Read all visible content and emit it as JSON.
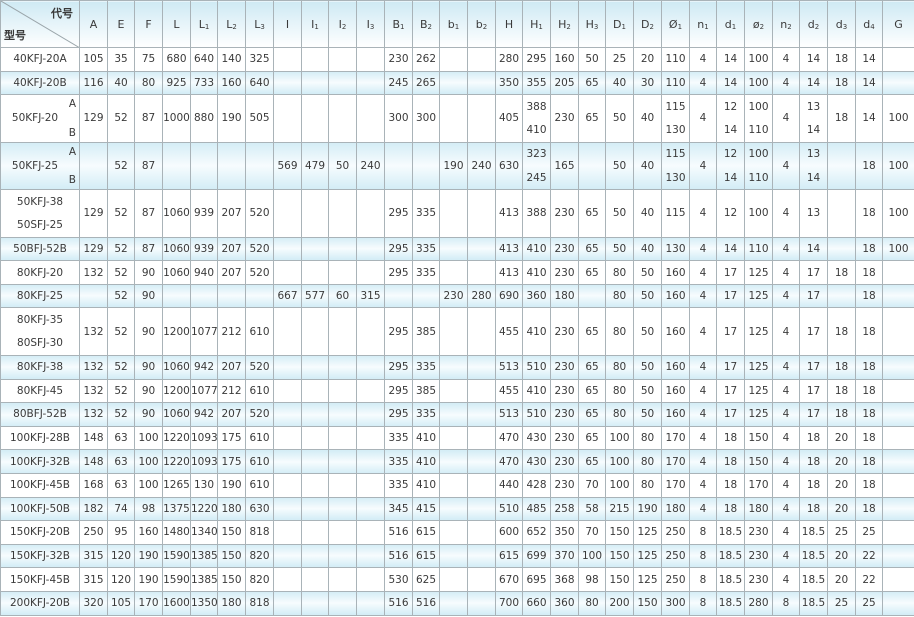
{
  "header": {
    "corner_top": "代号",
    "corner_bottom": "型号",
    "columns": [
      {
        "base": "A",
        "sub": ""
      },
      {
        "base": "E",
        "sub": ""
      },
      {
        "base": "F",
        "sub": ""
      },
      {
        "base": "L",
        "sub": ""
      },
      {
        "base": "L",
        "sub": "1"
      },
      {
        "base": "L",
        "sub": "2"
      },
      {
        "base": "L",
        "sub": "3"
      },
      {
        "base": "I",
        "sub": ""
      },
      {
        "base": "I",
        "sub": "1"
      },
      {
        "base": "I",
        "sub": "2"
      },
      {
        "base": "I",
        "sub": "3"
      },
      {
        "base": "B",
        "sub": "1"
      },
      {
        "base": "B",
        "sub": "2"
      },
      {
        "base": "b",
        "sub": "1"
      },
      {
        "base": "b",
        "sub": "2"
      },
      {
        "base": "H",
        "sub": ""
      },
      {
        "base": "H",
        "sub": "1"
      },
      {
        "base": "H",
        "sub": "2"
      },
      {
        "base": "H",
        "sub": "3"
      },
      {
        "base": "D",
        "sub": "1"
      },
      {
        "base": "D",
        "sub": "2"
      },
      {
        "base": "Ø",
        "sub": "1"
      },
      {
        "base": "n",
        "sub": "1"
      },
      {
        "base": "d",
        "sub": "1"
      },
      {
        "base": "ø",
        "sub": "2"
      },
      {
        "base": "n",
        "sub": "2"
      },
      {
        "base": "d",
        "sub": "2"
      },
      {
        "base": "d",
        "sub": "3"
      },
      {
        "base": "d",
        "sub": "4"
      },
      {
        "base": "G",
        "sub": ""
      }
    ]
  },
  "colors": {
    "shade": "#d4edf6",
    "border": "#a9b3b8",
    "text": "#3a3a3a"
  },
  "rows": [
    {
      "model": [
        "40KFJ-20A"
      ],
      "cells": [
        "105",
        "35",
        "75",
        "680",
        "640",
        "140",
        "325",
        "",
        "",
        "",
        "",
        "230",
        "262",
        "",
        "",
        "280",
        "295",
        "160",
        "50",
        "25",
        "20",
        "110",
        "4",
        "14",
        "100",
        "4",
        "14",
        "18",
        "14",
        ""
      ]
    },
    {
      "model": [
        "40KFJ-20B"
      ],
      "cells": [
        "116",
        "40",
        "80",
        "925",
        "733",
        "160",
        "640",
        "",
        "",
        "",
        "",
        "245",
        "265",
        "",
        "",
        "350",
        "355",
        "205",
        "65",
        "40",
        "30",
        "110",
        "4",
        "14",
        "100",
        "4",
        "14",
        "18",
        "14",
        ""
      ]
    },
    {
      "model": [
        "50KFJ-20"
      ],
      "variants": [
        "A",
        "B"
      ],
      "cells": [
        "129",
        "52",
        "87",
        "1000",
        "880",
        "190",
        "505",
        "",
        "",
        "",
        "",
        "300",
        "300",
        "",
        "",
        "405",
        [
          "388",
          "410"
        ],
        "230",
        "65",
        "50",
        "40",
        [
          "115",
          "130"
        ],
        "4",
        [
          "12",
          "14"
        ],
        [
          "100",
          "110"
        ],
        "4",
        [
          "13",
          "14"
        ],
        "18",
        "14",
        "100"
      ]
    },
    {
      "model": [
        "50KFJ-25"
      ],
      "variants": [
        "A",
        "B"
      ],
      "cells": [
        "",
        "52",
        "87",
        "",
        "",
        "",
        "",
        "569",
        "479",
        "50",
        "240",
        "",
        "",
        "190",
        "240",
        "630",
        [
          "323",
          "245"
        ],
        "165",
        "",
        "50",
        "40",
        [
          "115",
          "130"
        ],
        "4",
        [
          "12",
          "14"
        ],
        [
          "100",
          "110"
        ],
        "4",
        [
          "13",
          "14"
        ],
        "",
        "18",
        "100"
      ]
    },
    {
      "model": [
        "50KFJ-38",
        "50SFJ-25"
      ],
      "cells": [
        "129",
        "52",
        "87",
        "1060",
        "939",
        "207",
        "520",
        "",
        "",
        "",
        "",
        "295",
        "335",
        "",
        "",
        "413",
        "388",
        "230",
        "65",
        "50",
        "40",
        "115",
        "4",
        "12",
        "100",
        "4",
        "13",
        "",
        "18",
        "100"
      ]
    },
    {
      "model": [
        "50BFJ-52B"
      ],
      "cells": [
        "129",
        "52",
        "87",
        "1060",
        "939",
        "207",
        "520",
        "",
        "",
        "",
        "",
        "295",
        "335",
        "",
        "",
        "413",
        "410",
        "230",
        "65",
        "50",
        "40",
        "130",
        "4",
        "14",
        "110",
        "4",
        "14",
        "",
        "18",
        "100"
      ]
    },
    {
      "model": [
        "80KFJ-20"
      ],
      "cells": [
        "132",
        "52",
        "90",
        "1060",
        "940",
        "207",
        "520",
        "",
        "",
        "",
        "",
        "295",
        "335",
        "",
        "",
        "413",
        "410",
        "230",
        "65",
        "80",
        "50",
        "160",
        "4",
        "17",
        "125",
        "4",
        "17",
        "18",
        "18",
        ""
      ]
    },
    {
      "model": [
        "80KFJ-25"
      ],
      "cells": [
        "",
        "52",
        "90",
        "",
        "",
        "",
        "",
        "667",
        "577",
        "60",
        "315",
        "",
        "",
        "230",
        "280",
        "690",
        "360",
        "180",
        "",
        "80",
        "50",
        "160",
        "4",
        "17",
        "125",
        "4",
        "17",
        "",
        "18",
        ""
      ]
    },
    {
      "model": [
        "80KFJ-35",
        "80SFJ-30"
      ],
      "cells": [
        "132",
        "52",
        "90",
        "1200",
        "1077",
        "212",
        "610",
        "",
        "",
        "",
        "",
        "295",
        "385",
        "",
        "",
        "455",
        "410",
        "230",
        "65",
        "80",
        "50",
        "160",
        "4",
        "17",
        "125",
        "4",
        "17",
        "18",
        "18",
        ""
      ]
    },
    {
      "model": [
        "80KFJ-38"
      ],
      "cells": [
        "132",
        "52",
        "90",
        "1060",
        "942",
        "207",
        "520",
        "",
        "",
        "",
        "",
        "295",
        "335",
        "",
        "",
        "513",
        "510",
        "230",
        "65",
        "80",
        "50",
        "160",
        "4",
        "17",
        "125",
        "4",
        "17",
        "18",
        "18",
        ""
      ]
    },
    {
      "model": [
        "80KFJ-45"
      ],
      "cells": [
        "132",
        "52",
        "90",
        "1200",
        "1077",
        "212",
        "610",
        "",
        "",
        "",
        "",
        "295",
        "385",
        "",
        "",
        "455",
        "410",
        "230",
        "65",
        "80",
        "50",
        "160",
        "4",
        "17",
        "125",
        "4",
        "17",
        "18",
        "18",
        ""
      ]
    },
    {
      "model": [
        "80BFJ-52B"
      ],
      "cells": [
        "132",
        "52",
        "90",
        "1060",
        "942",
        "207",
        "520",
        "",
        "",
        "",
        "",
        "295",
        "335",
        "",
        "",
        "513",
        "510",
        "230",
        "65",
        "80",
        "50",
        "160",
        "4",
        "17",
        "125",
        "4",
        "17",
        "18",
        "18",
        ""
      ]
    },
    {
      "model": [
        "100KFJ-28B"
      ],
      "cells": [
        "148",
        "63",
        "100",
        "1220",
        "1093",
        "175",
        "610",
        "",
        "",
        "",
        "",
        "335",
        "410",
        "",
        "",
        "470",
        "430",
        "230",
        "65",
        "100",
        "80",
        "170",
        "4",
        "18",
        "150",
        "4",
        "18",
        "20",
        "18",
        ""
      ]
    },
    {
      "model": [
        "100KFJ-32B"
      ],
      "cells": [
        "148",
        "63",
        "100",
        "1220",
        "1093",
        "175",
        "610",
        "",
        "",
        "",
        "",
        "335",
        "410",
        "",
        "",
        "470",
        "430",
        "230",
        "65",
        "100",
        "80",
        "170",
        "4",
        "18",
        "150",
        "4",
        "18",
        "20",
        "18",
        ""
      ]
    },
    {
      "model": [
        "100KFJ-45B"
      ],
      "cells": [
        "168",
        "63",
        "100",
        "1265",
        "130",
        "190",
        "610",
        "",
        "",
        "",
        "",
        "335",
        "410",
        "",
        "",
        "440",
        "428",
        "230",
        "70",
        "100",
        "80",
        "170",
        "4",
        "18",
        "170",
        "4",
        "18",
        "20",
        "18",
        ""
      ]
    },
    {
      "model": [
        "100KFJ-50B"
      ],
      "cells": [
        "182",
        "74",
        "98",
        "1375",
        "1220",
        "180",
        "630",
        "",
        "",
        "",
        "",
        "345",
        "415",
        "",
        "",
        "510",
        "485",
        "258",
        "58",
        "215",
        "190",
        "180",
        "4",
        "18",
        "180",
        "4",
        "18",
        "20",
        "18",
        ""
      ]
    },
    {
      "model": [
        "150KFJ-20B"
      ],
      "cells": [
        "250",
        "95",
        "160",
        "1480",
        "1340",
        "150",
        "818",
        "",
        "",
        "",
        "",
        "516",
        "615",
        "",
        "",
        "600",
        "652",
        "350",
        "70",
        "150",
        "125",
        "250",
        "8",
        "18.5",
        "230",
        "4",
        "18.5",
        "25",
        "25",
        ""
      ]
    },
    {
      "model": [
        "150KFJ-32B"
      ],
      "cells": [
        "315",
        "120",
        "190",
        "1590",
        "1385",
        "150",
        "820",
        "",
        "",
        "",
        "",
        "516",
        "615",
        "",
        "",
        "615",
        "699",
        "370",
        "100",
        "150",
        "125",
        "250",
        "8",
        "18.5",
        "230",
        "4",
        "18.5",
        "20",
        "22",
        ""
      ]
    },
    {
      "model": [
        "150KFJ-45B"
      ],
      "cells": [
        "315",
        "120",
        "190",
        "1590",
        "1385",
        "150",
        "820",
        "",
        "",
        "",
        "",
        "530",
        "625",
        "",
        "",
        "670",
        "695",
        "368",
        "98",
        "150",
        "125",
        "250",
        "8",
        "18.5",
        "230",
        "4",
        "18.5",
        "20",
        "22",
        ""
      ]
    },
    {
      "model": [
        "200KFJ-20B"
      ],
      "cells": [
        "320",
        "105",
        "170",
        "1600",
        "1350",
        "180",
        "818",
        "",
        "",
        "",
        "",
        "516",
        "516",
        "",
        "",
        "700",
        "660",
        "360",
        "80",
        "200",
        "150",
        "300",
        "8",
        "18.5",
        "280",
        "8",
        "18.5",
        "25",
        "25",
        ""
      ]
    }
  ]
}
